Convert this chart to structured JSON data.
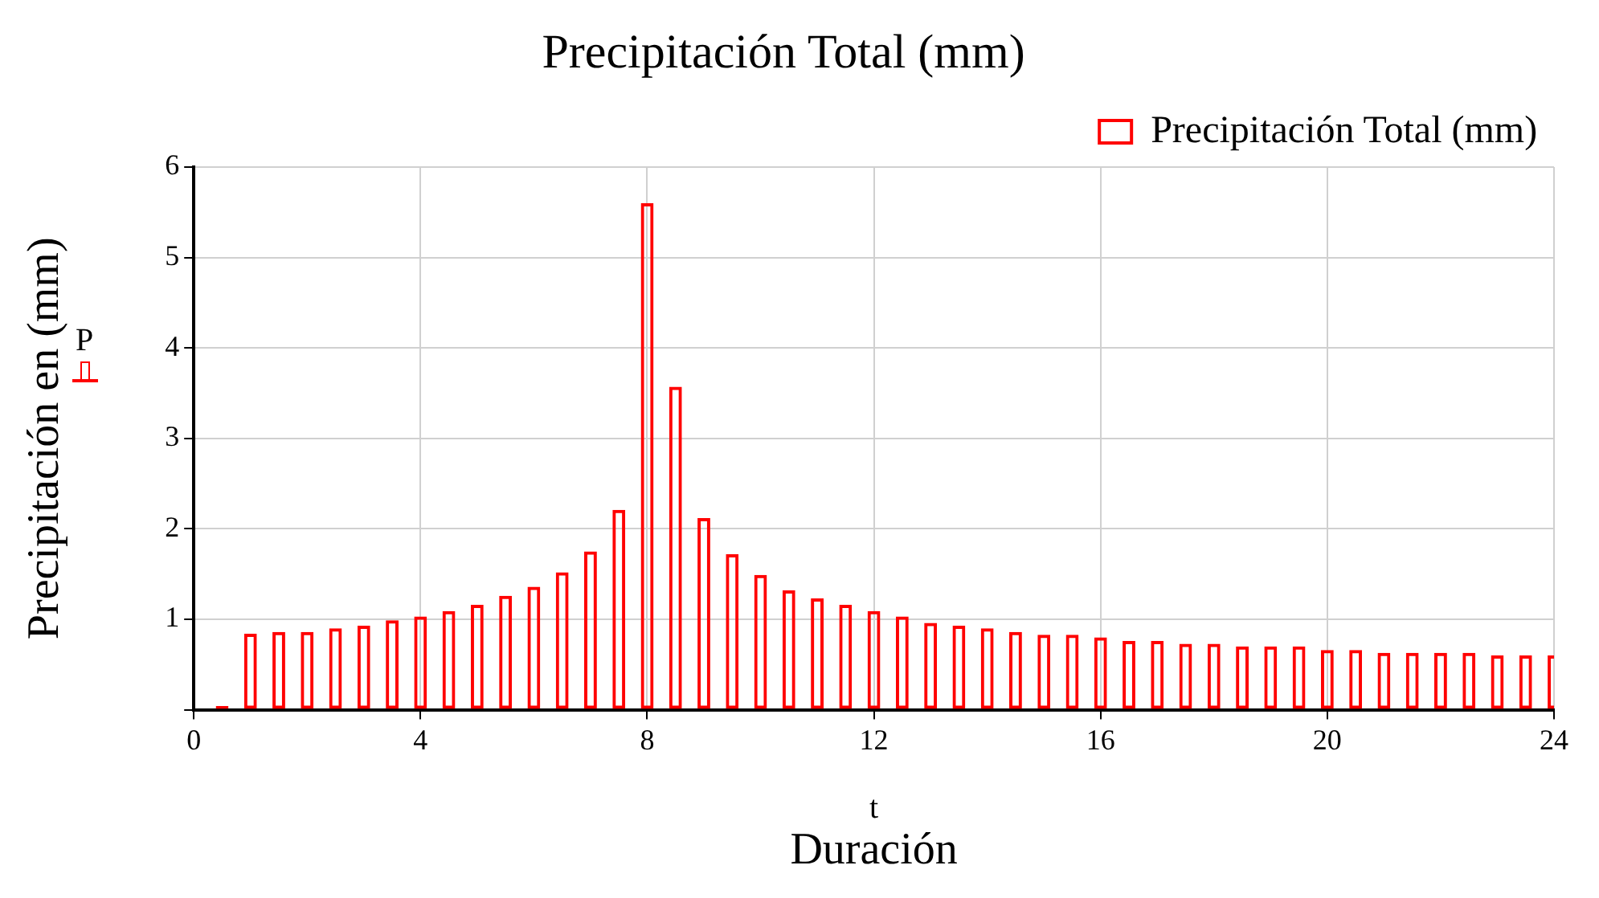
{
  "chart_data": {
    "type": "bar",
    "title": "Precipitación Total (mm)",
    "xlabel": "Duración",
    "ylabel": "Precipitación en (mm)",
    "annotations": [
      "t",
      "P"
    ],
    "x": [
      0,
      0.5,
      1,
      1.5,
      2,
      2.5,
      3,
      3.5,
      4,
      4.5,
      5,
      5.5,
      6,
      6.5,
      7,
      7.5,
      8,
      8.5,
      9,
      9.5,
      10,
      10.5,
      11,
      11.5,
      12,
      12.5,
      13,
      13.5,
      14,
      14.5,
      15,
      15.5,
      16,
      16.5,
      17,
      17.5,
      18,
      18.5,
      19,
      19.5,
      20,
      20.5,
      21,
      21.5,
      22,
      22.5,
      23,
      23.5,
      24
    ],
    "series": [
      {
        "name": "Precipitación Total (mm)",
        "color": "#ff0000",
        "values": [
          0,
          0.04,
          0.84,
          0.86,
          0.86,
          0.9,
          0.93,
          0.99,
          1.03,
          1.09,
          1.16,
          1.26,
          1.36,
          1.52,
          1.75,
          2.21,
          5.6,
          3.57,
          2.12,
          1.72,
          1.49,
          1.32,
          1.23,
          1.16,
          1.09,
          1.03,
          0.96,
          0.93,
          0.9,
          0.86,
          0.83,
          0.83,
          0.8,
          0.76,
          0.76,
          0.73,
          0.73,
          0.7,
          0.7,
          0.7,
          0.66,
          0.66,
          0.63,
          0.63,
          0.63,
          0.63,
          0.6,
          0.6,
          0.6
        ]
      }
    ],
    "xlim": [
      0,
      24
    ],
    "xticks": [
      0,
      4,
      8,
      12,
      16,
      20,
      24
    ],
    "ylim": [
      0,
      6
    ],
    "yticks": [
      {
        "value": 0,
        "label": null
      },
      1,
      2,
      3,
      4,
      5,
      6
    ],
    "grid": true,
    "legend": "top right"
  }
}
